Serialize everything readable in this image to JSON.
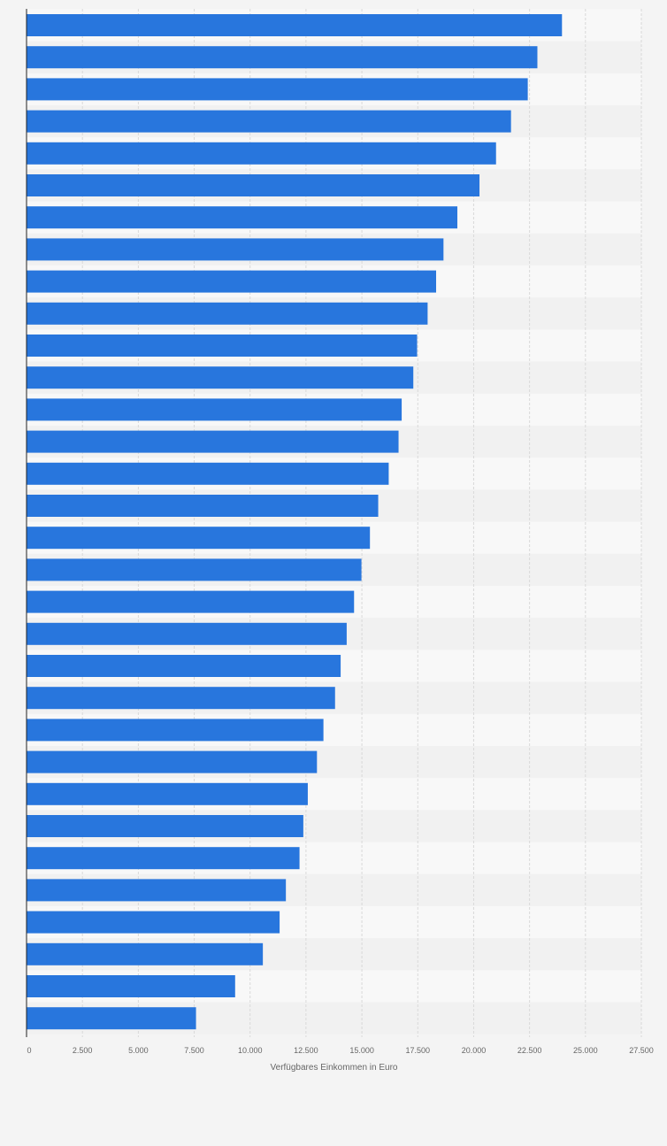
{
  "colors": {
    "bar": "#2876dd",
    "background": "#f4f4f4",
    "stripe_light": "#f8f8f8",
    "stripe_dark": "#f1f1f1",
    "grid": "#d9d9d9",
    "axis": "#222222",
    "tick_text": "#666666"
  },
  "chart_data": {
    "type": "bar",
    "orientation": "horizontal",
    "xlabel": "Verfügbares Einkommen in Euro",
    "ylabel": "",
    "xlim": [
      0,
      27500
    ],
    "x_ticks": [
      0,
      2500,
      5000,
      7500,
      10000,
      12500,
      15000,
      17500,
      20000,
      22500,
      25000,
      27500
    ],
    "x_tick_labels": [
      "0",
      "2.500",
      "5.000",
      "7.500",
      "10.000",
      "12.500",
      "15.000",
      "17.500",
      "20.000",
      "22.500",
      "25.000",
      "27.500"
    ],
    "grid": true,
    "values": [
      23950,
      22850,
      22420,
      21670,
      21000,
      20260,
      19270,
      18650,
      18320,
      17940,
      17470,
      17300,
      16780,
      16640,
      16200,
      15730,
      15360,
      14980,
      14650,
      14320,
      14050,
      13800,
      13280,
      12990,
      12580,
      12380,
      12210,
      11600,
      11320,
      10570,
      9330,
      7580
    ]
  }
}
